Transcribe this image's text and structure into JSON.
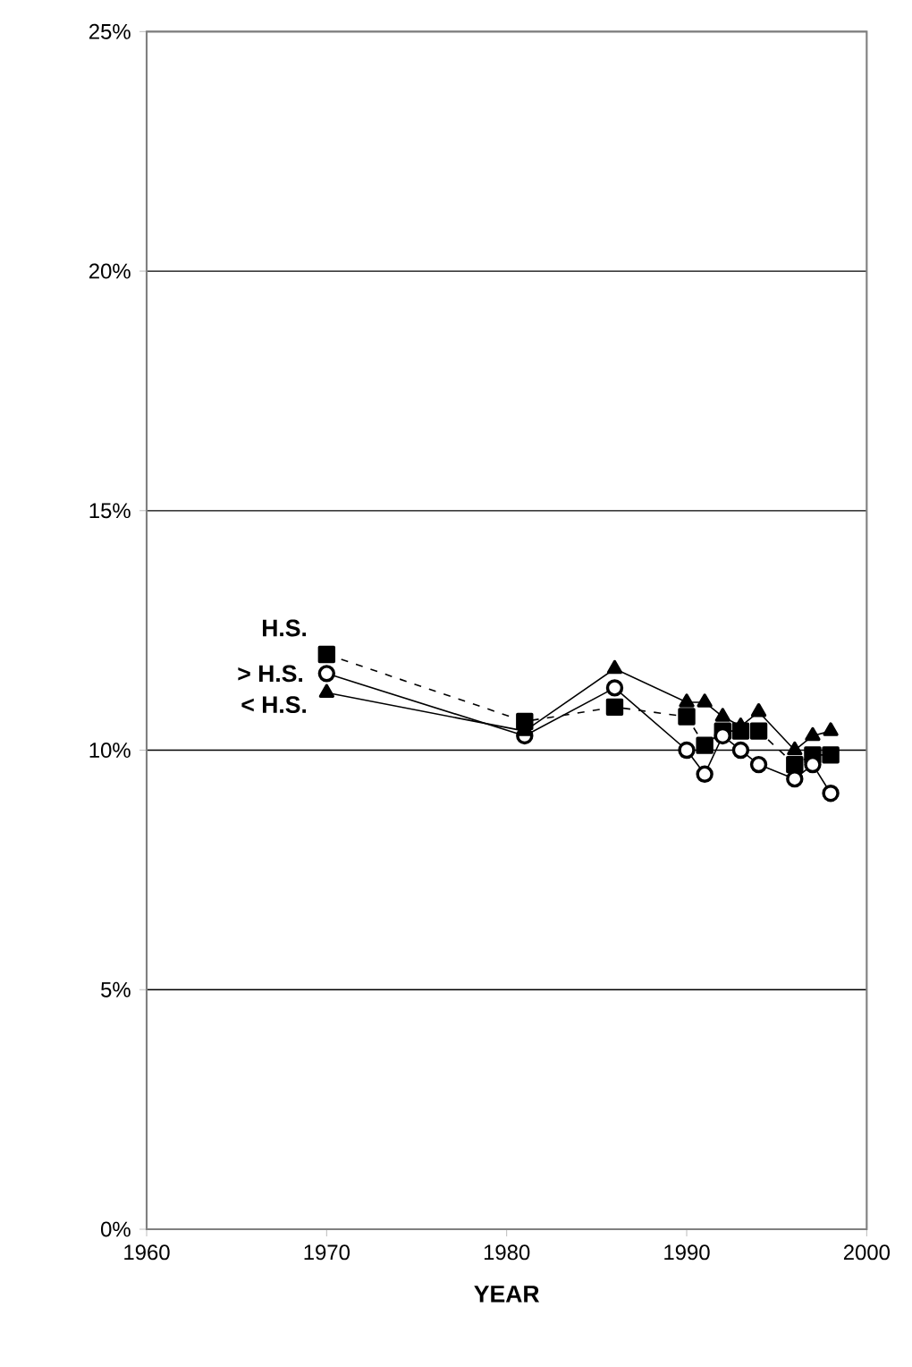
{
  "chart_data": {
    "type": "line",
    "xlabel": "YEAR",
    "x": [
      1970,
      1981,
      1986,
      1990,
      1991,
      1992,
      1993,
      1994,
      1996,
      1997,
      1998
    ],
    "series": [
      {
        "name": "H.S.",
        "color": "#000000",
        "marker": "square",
        "line_style": "dashed",
        "values": [
          12.0,
          10.6,
          10.9,
          10.7,
          10.1,
          10.4,
          10.4,
          10.4,
          9.7,
          9.9,
          9.9
        ]
      },
      {
        "name": "> H.S.",
        "color": "#000000",
        "marker": "circle",
        "line_style": "solid",
        "values": [
          11.6,
          10.3,
          11.3,
          10.0,
          9.5,
          10.3,
          10.0,
          9.7,
          9.4,
          9.7,
          9.1
        ]
      },
      {
        "name": "< H.S.",
        "color": "#000000",
        "marker": "triangle",
        "line_style": "solid",
        "values": [
          11.2,
          10.4,
          11.7,
          11.0,
          11.0,
          10.7,
          10.5,
          10.8,
          10.0,
          10.3,
          10.4
        ]
      }
    ],
    "xlim": [
      1960,
      2000
    ],
    "xticks": [
      1960,
      1970,
      1980,
      1990,
      2000
    ],
    "ylim": [
      0,
      25
    ],
    "yticks": [
      {
        "value": 0,
        "label": "0%"
      },
      {
        "value": 5,
        "label": "5%"
      },
      {
        "value": 10,
        "label": "10%"
      },
      {
        "value": 15,
        "label": "15%"
      },
      {
        "value": 20,
        "label": "20%"
      },
      {
        "value": 25,
        "label": "25%"
      }
    ],
    "grid": "y",
    "legend": false
  }
}
